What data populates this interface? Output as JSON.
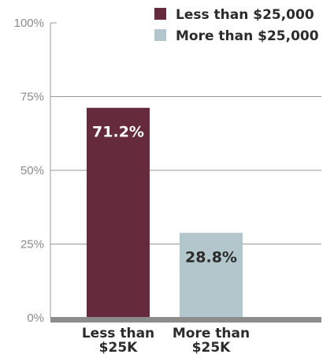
{
  "chart_data": {
    "type": "bar",
    "categories": [
      "Less than $25K",
      "More than $25K"
    ],
    "category_label_lines": [
      [
        "Less than",
        "$25K"
      ],
      [
        "More than",
        "$25K"
      ]
    ],
    "values": [
      71.2,
      28.8
    ],
    "value_labels": [
      "71.2%",
      "28.8%"
    ],
    "bar_colors": [
      "#652a3c",
      "#b3c6cc"
    ],
    "value_label_colors": [
      "#ffffff",
      "#2b2b2b"
    ],
    "title": "",
    "xlabel": "",
    "ylabel": "",
    "ylim": [
      0,
      100
    ],
    "yticks": [
      0,
      25,
      50,
      75,
      100
    ],
    "ytick_labels": [
      "0%",
      "25%",
      "50%",
      "75%",
      "100%"
    ],
    "grid": true,
    "legend_position": "top-right",
    "legend": [
      {
        "label": "Less than $25,000",
        "color": "#652a3c"
      },
      {
        "label": "More than $25,000",
        "color": "#b3c6cc"
      }
    ],
    "colors": {
      "gridline": "#9a9a9a",
      "baseline": "#8c8c8c",
      "axis_line": "#9a9a9a",
      "tick_text": "#8a8a8a",
      "label_text": "#2b2b2b"
    }
  }
}
